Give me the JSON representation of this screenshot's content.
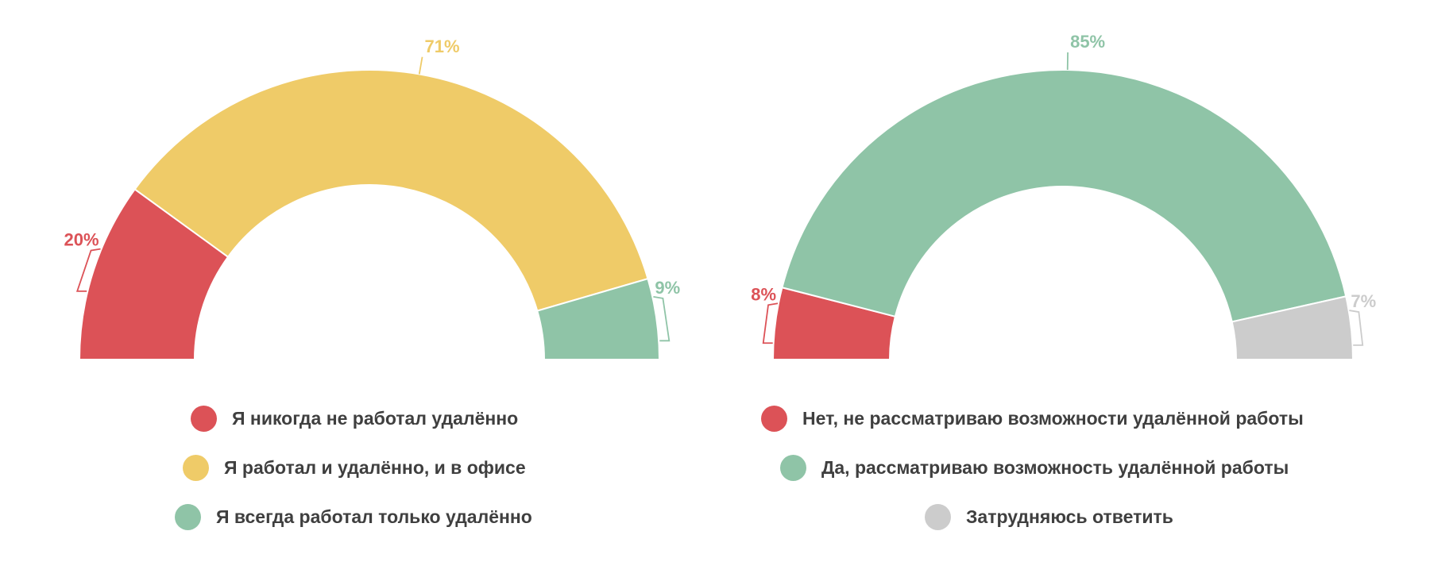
{
  "chart_data": [
    {
      "type": "pie",
      "variant": "semi-donut",
      "title": "",
      "slices": [
        {
          "label": "Я никогда не работал удалённо",
          "value": 20,
          "display": "20%",
          "color": "#dc5257"
        },
        {
          "label": "Я работал и удалённо, и в офисе",
          "value": 71,
          "display": "71%",
          "color": "#efcb68"
        },
        {
          "label": "Я всегда работал только удалённо",
          "value": 9,
          "display": "9%",
          "color": "#8fc4a7"
        }
      ],
      "legend": "bottom"
    },
    {
      "type": "pie",
      "variant": "semi-donut",
      "title": "",
      "slices": [
        {
          "label": "Нет, не рассматриваю возможности удалённой работы",
          "value": 8,
          "display": "8%",
          "color": "#dc5257"
        },
        {
          "label": "Да, рассматриваю возможность удалённой работы",
          "value": 85,
          "display": "85%",
          "color": "#8fc4a7"
        },
        {
          "label": "Затрудняюсь ответить",
          "value": 7,
          "display": "7%",
          "color": "#cccccc"
        }
      ],
      "legend": "bottom"
    }
  ]
}
